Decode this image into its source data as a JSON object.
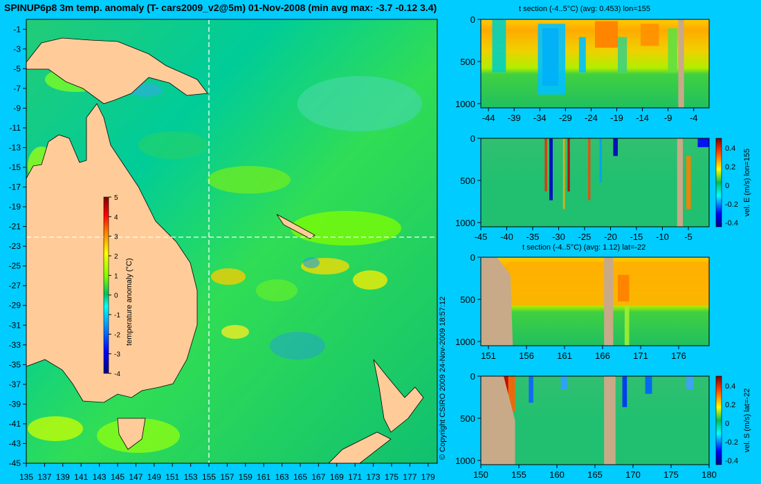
{
  "title": "SPINUP6p8 3m temp. anomaly (T- cars2009_v2@5m) 01-Nov-2008 (min avg max: -3.7 -0.12 3.4)",
  "copyright": "© Copyright CSIRO 2009   24-Nov-2009 18:57:12",
  "colors": {
    "background": "#00ccff",
    "land": "#ffcc99",
    "section_land": "#c8aa88",
    "colormap": [
      "#00007f",
      "#0000ff",
      "#0080ff",
      "#00ffff",
      "#00c060",
      "#80ff00",
      "#ffff00",
      "#ff8000",
      "#ff0000",
      "#7f0000"
    ]
  },
  "chart_data": [
    {
      "type": "heatmap",
      "panel": "map",
      "title": "SPINUP6p8 3m temp. anomaly (T- cars2009_v2@5m) 01-Nov-2008 (min avg max: -3.7 -0.12 3.4)",
      "xlim": [
        135,
        180
      ],
      "ylim": [
        -45,
        0
      ],
      "x_ticks": [
        "135",
        "137",
        "139",
        "141",
        "143",
        "145",
        "147",
        "149",
        "151",
        "153",
        "155",
        "157",
        "159",
        "161",
        "163",
        "165",
        "167",
        "169",
        "171",
        "173",
        "175",
        "177",
        "179"
      ],
      "y_ticks": [
        "-1",
        "-3",
        "-5",
        "-7",
        "-9",
        "-11",
        "-13",
        "-15",
        "-17",
        "-19",
        "-21",
        "-23",
        "-25",
        "-27",
        "-29",
        "-31",
        "-33",
        "-35",
        "-37",
        "-39",
        "-41",
        "-43",
        "-45"
      ],
      "colorbar": {
        "label": "temperature anomaly (°C)",
        "ticks": [
          "5",
          "4",
          "3",
          "2",
          "1",
          "0",
          "-1",
          "-2",
          "-3",
          "-4"
        ],
        "range": [
          -4,
          5
        ]
      },
      "stats": {
        "min": -3.7,
        "avg": -0.12,
        "max": 3.4
      },
      "section_lines": {
        "lon": 155,
        "lat": -22
      }
    },
    {
      "type": "heatmap",
      "panel": "t-section-lon155",
      "title": "t section (-4..5°C) (avg: 0.453) lon=155",
      "x_ticks": [
        "-44",
        "-39",
        "-34",
        "-29",
        "-24",
        "-19",
        "-14",
        "-9",
        "-4"
      ],
      "y_ticks": [
        "0",
        "500",
        "1000"
      ],
      "avg": 0.453
    },
    {
      "type": "heatmap",
      "panel": "vel-e-lon155",
      "x_ticks": [
        "-45",
        "-40",
        "-35",
        "-30",
        "-25",
        "-20",
        "-15",
        "-10",
        "-5"
      ],
      "y_ticks": [
        "0",
        "500",
        "1000"
      ],
      "colorbar": {
        "label": "vel. E (m/s) lon=155",
        "ticks": [
          "0.4",
          "0.2",
          "0",
          "-0.2",
          "-0.4"
        ]
      }
    },
    {
      "type": "heatmap",
      "panel": "t-section-lat-22",
      "title": "t section (-4..5°C) (avg: 1.12) lat=-22",
      "x_ticks": [
        "151",
        "156",
        "161",
        "166",
        "171",
        "176"
      ],
      "y_ticks": [
        "0",
        "500",
        "1000"
      ],
      "avg": 1.12
    },
    {
      "type": "heatmap",
      "panel": "vel-s-lat-22",
      "x_ticks": [
        "150",
        "155",
        "160",
        "165",
        "170",
        "175",
        "180"
      ],
      "y_ticks": [
        "0",
        "500",
        "1000"
      ],
      "colorbar": {
        "label": "vel. S (m/s) lat=-22",
        "ticks": [
          "0.4",
          "0.2",
          "0",
          "-0.2",
          "-0.4"
        ]
      }
    }
  ]
}
